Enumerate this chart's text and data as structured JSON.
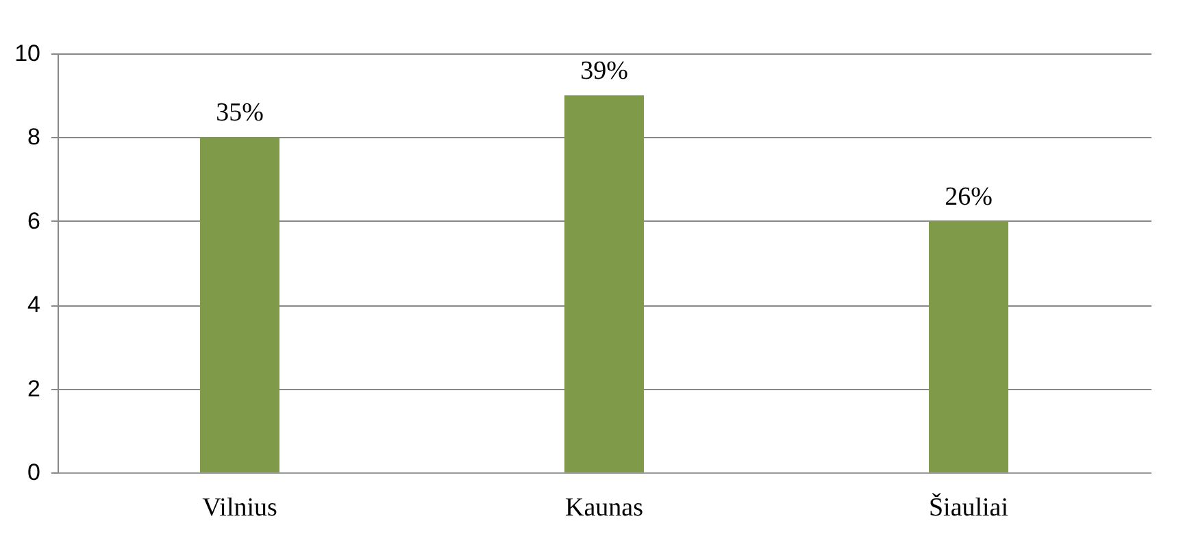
{
  "chart_data": {
    "type": "bar",
    "categories": [
      "Vilnius",
      "Kaunas",
      "Šiauliai"
    ],
    "series": [
      {
        "color": "#7f9a48",
        "values": [
          8,
          9,
          6
        ]
      }
    ],
    "annotations": [
      {
        "text": "35%",
        "x": "Vilnius",
        "y": 8
      },
      {
        "text": "39%",
        "x": "Kaunas",
        "y": 9
      },
      {
        "text": "26%",
        "x": "Šiauliai",
        "y": 6
      }
    ],
    "ylim": [
      0,
      10
    ],
    "yticks": [
      0,
      2,
      4,
      6,
      8,
      10
    ],
    "grid": "y"
  }
}
